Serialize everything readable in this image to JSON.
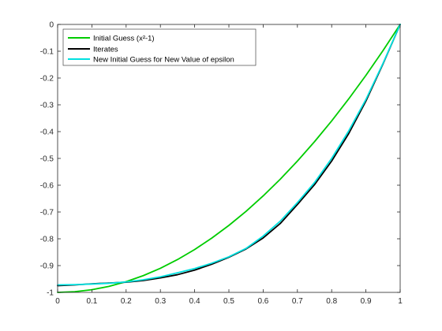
{
  "chart_data": {
    "type": "line",
    "title": "",
    "xlabel": "",
    "ylabel": "",
    "xlim": [
      0,
      1
    ],
    "ylim": [
      -1,
      0
    ],
    "x_ticks": [
      0,
      0.1,
      0.2,
      0.3,
      0.4,
      0.5,
      0.6,
      0.7,
      0.8,
      0.9,
      1
    ],
    "x_tick_labels": [
      "0",
      "0.1",
      "0.2",
      "0.3",
      "0.4",
      "0.5",
      "0.6",
      "0.7",
      "0.8",
      "0.9",
      "1"
    ],
    "y_ticks": [
      0,
      -0.1,
      -0.2,
      -0.3,
      -0.4,
      -0.5,
      -0.6,
      -0.7,
      -0.8,
      -0.9,
      -1
    ],
    "y_tick_labels": [
      "0",
      "-0.1",
      "-0.2",
      "-0.3",
      "-0.4",
      "-0.5",
      "-0.6",
      "-0.7",
      "-0.8",
      "-0.9",
      "-1"
    ],
    "grid": false,
    "legend_position": "top-left",
    "series": [
      {
        "name": "Initial Guess (x²-1)",
        "color": "#00cc00",
        "x": [
          0,
          0.05,
          0.1,
          0.15,
          0.2,
          0.25,
          0.3,
          0.35,
          0.4,
          0.45,
          0.5,
          0.55,
          0.6,
          0.65,
          0.7,
          0.75,
          0.8,
          0.85,
          0.9,
          0.95,
          1
        ],
        "y": [
          -1,
          -0.9975,
          -0.99,
          -0.9775,
          -0.96,
          -0.9375,
          -0.91,
          -0.8775,
          -0.84,
          -0.7975,
          -0.75,
          -0.6975,
          -0.64,
          -0.5775,
          -0.51,
          -0.4375,
          -0.36,
          -0.2775,
          -0.19,
          -0.0975,
          0
        ]
      },
      {
        "name": "Iterates",
        "color": "#000000",
        "x": [
          0,
          0.05,
          0.1,
          0.15,
          0.2,
          0.25,
          0.3,
          0.35,
          0.4,
          0.45,
          0.5,
          0.55,
          0.6,
          0.65,
          0.7,
          0.75,
          0.8,
          0.85,
          0.9,
          0.95,
          1
        ],
        "y": [
          -0.975,
          -0.972,
          -0.968,
          -0.965,
          -0.962,
          -0.956,
          -0.946,
          -0.934,
          -0.917,
          -0.895,
          -0.869,
          -0.838,
          -0.797,
          -0.743,
          -0.672,
          -0.598,
          -0.51,
          -0.407,
          -0.286,
          -0.147,
          0
        ]
      },
      {
        "name": "New Initial Guess for New Value of epsilon",
        "color": "#00e0e0",
        "x": [
          0,
          0.05,
          0.1,
          0.15,
          0.2,
          0.25,
          0.3,
          0.35,
          0.4,
          0.45,
          0.5,
          0.55,
          0.6,
          0.65,
          0.7,
          0.75,
          0.8,
          0.85,
          0.9,
          0.95,
          1
        ],
        "y": [
          -0.972,
          -0.971,
          -0.969,
          -0.966,
          -0.961,
          -0.953,
          -0.942,
          -0.927,
          -0.911,
          -0.891,
          -0.867,
          -0.836,
          -0.79,
          -0.734,
          -0.665,
          -0.59,
          -0.5,
          -0.397,
          -0.28,
          -0.145,
          0
        ]
      }
    ]
  }
}
